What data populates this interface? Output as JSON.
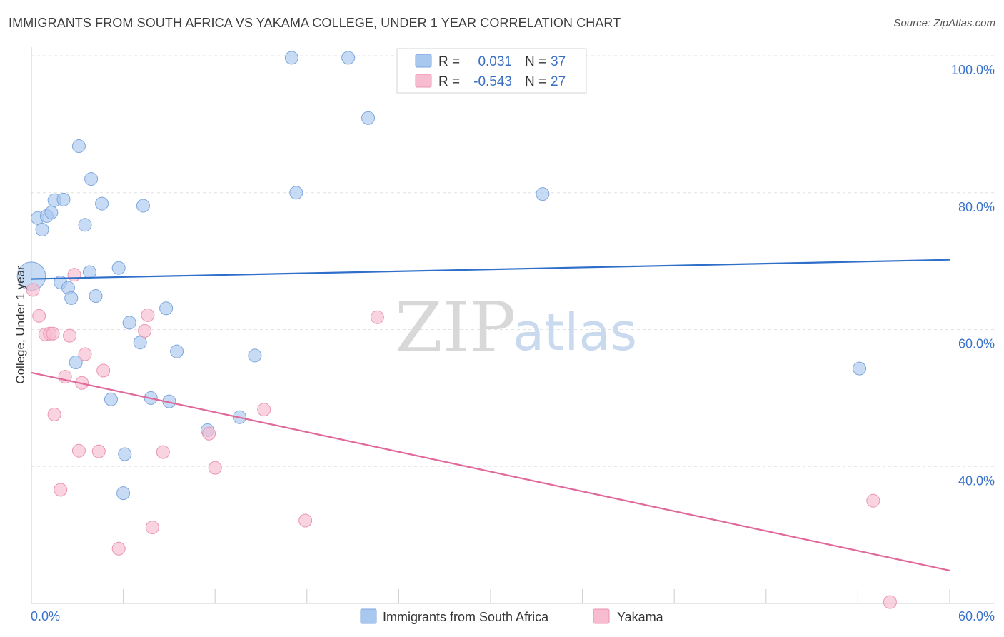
{
  "header": {
    "title": "IMMIGRANTS FROM SOUTH AFRICA VS YAKAMA COLLEGE, UNDER 1 YEAR CORRELATION CHART",
    "source": "Source: ZipAtlas.com"
  },
  "watermark": {
    "zip": "ZIP",
    "atlas": "atlas"
  },
  "stats": {
    "r_label": "R =",
    "n_label": "N =",
    "rows": [
      {
        "r": "0.031",
        "n": "37",
        "color": "#a9c8f0"
      },
      {
        "r": "-0.543",
        "n": "27",
        "color": "#f7bcd0"
      }
    ]
  },
  "colors": {
    "blue_point": "#a9c8f0",
    "blue_stroke": "#7ea6dc",
    "blue_line": "#2f6fca",
    "pink_point": "#f7bcd0",
    "pink_stroke": "#e995b2",
    "pink_line": "#e0689a",
    "grid": "#e2e2e2",
    "axis": "#cccccc",
    "tick_text": "#3a73c9"
  },
  "chart_data": {
    "type": "scatter",
    "xlabel": "",
    "ylabel": "College, Under 1 year",
    "xlim": [
      0,
      60
    ],
    "ylim": [
      20,
      100
    ],
    "x_tick_labels": [
      "0.0%",
      "60.0%"
    ],
    "y_ticks": [
      100,
      80,
      60,
      40
    ],
    "y_tick_labels": [
      "100.0%",
      "80.0%",
      "60.0%",
      "40.0%"
    ],
    "grid": true,
    "legend_placement": "bottom-center",
    "series": [
      {
        "name": "Immigrants from South Africa",
        "trend": [
          [
            0,
            67.4
          ],
          [
            60,
            70.2
          ]
        ],
        "points": [
          [
            0.0,
            67.8,
            2.2
          ],
          [
            0.4,
            76.3,
            1
          ],
          [
            0.7,
            74.6,
            1
          ],
          [
            1.0,
            76.6,
            1
          ],
          [
            1.3,
            77.1,
            1
          ],
          [
            1.5,
            78.9,
            1
          ],
          [
            2.1,
            79.0,
            1
          ],
          [
            1.9,
            66.9,
            1
          ],
          [
            2.4,
            66.1,
            1
          ],
          [
            2.6,
            64.6,
            1
          ],
          [
            2.9,
            55.2,
            1
          ],
          [
            3.1,
            86.8,
            1
          ],
          [
            3.5,
            75.3,
            1
          ],
          [
            3.8,
            68.4,
            1
          ],
          [
            3.9,
            82.0,
            1
          ],
          [
            4.2,
            64.9,
            1
          ],
          [
            4.6,
            78.4,
            1
          ],
          [
            5.2,
            49.8,
            1
          ],
          [
            5.7,
            69.0,
            1
          ],
          [
            6.0,
            36.1,
            1
          ],
          [
            6.1,
            41.8,
            1
          ],
          [
            6.4,
            61.0,
            1
          ],
          [
            7.1,
            58.1,
            1
          ],
          [
            7.3,
            78.1,
            1
          ],
          [
            7.8,
            50.0,
            1
          ],
          [
            9.0,
            49.5,
            1
          ],
          [
            8.8,
            63.1,
            1
          ],
          [
            9.5,
            56.8,
            1
          ],
          [
            11.5,
            45.3,
            1
          ],
          [
            13.6,
            47.2,
            1
          ],
          [
            14.6,
            56.2,
            1
          ],
          [
            17.0,
            99.7,
            1
          ],
          [
            17.3,
            80.0,
            1
          ],
          [
            20.7,
            99.7,
            1
          ],
          [
            22.0,
            90.9,
            1
          ],
          [
            33.4,
            79.8,
            1
          ],
          [
            54.1,
            54.3,
            1
          ]
        ]
      },
      {
        "name": "Yakama",
        "trend": [
          [
            0,
            53.7
          ],
          [
            60,
            24.8
          ]
        ],
        "points": [
          [
            0.1,
            65.8,
            1
          ],
          [
            0.5,
            62.0,
            1
          ],
          [
            0.9,
            59.3,
            1
          ],
          [
            1.2,
            59.4,
            1
          ],
          [
            1.4,
            59.4,
            1
          ],
          [
            1.5,
            47.6,
            1
          ],
          [
            1.9,
            36.6,
            1
          ],
          [
            2.2,
            53.1,
            1
          ],
          [
            2.5,
            59.1,
            1
          ],
          [
            2.8,
            68.0,
            1
          ],
          [
            3.1,
            42.3,
            1
          ],
          [
            3.3,
            52.2,
            1
          ],
          [
            3.5,
            56.4,
            1
          ],
          [
            4.4,
            42.2,
            1
          ],
          [
            4.7,
            54.0,
            1
          ],
          [
            5.7,
            28.0,
            1
          ],
          [
            7.4,
            59.8,
            1
          ],
          [
            7.6,
            62.1,
            1
          ],
          [
            7.9,
            31.1,
            1
          ],
          [
            8.6,
            42.1,
            1
          ],
          [
            11.6,
            44.8,
            1
          ],
          [
            12.0,
            39.8,
            1
          ],
          [
            15.2,
            48.3,
            1
          ],
          [
            17.9,
            32.1,
            1
          ],
          [
            22.6,
            61.8,
            1
          ],
          [
            55.0,
            35.0,
            1
          ],
          [
            56.1,
            20.2,
            1
          ]
        ]
      }
    ]
  }
}
